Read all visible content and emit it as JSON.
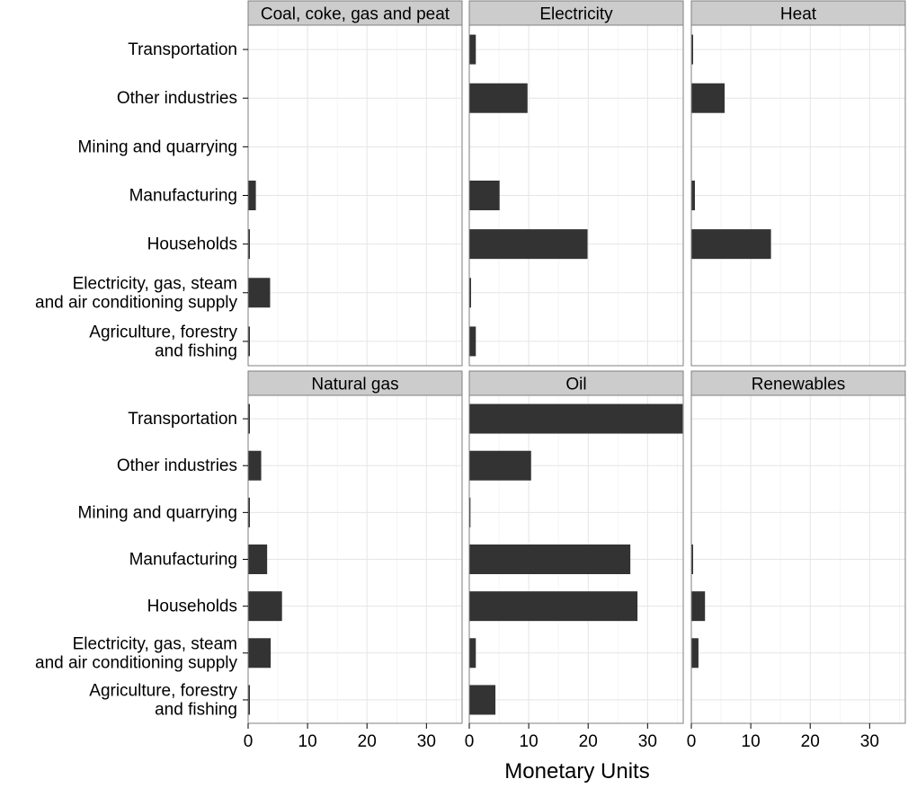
{
  "chart_data": {
    "type": "bar",
    "orientation": "horizontal",
    "facets_layout": "2 rows x 3 columns",
    "xlabel": "Monetary Units",
    "xlim": [
      0,
      36
    ],
    "x_ticks": [
      0,
      10,
      20,
      30
    ],
    "grid": true,
    "categories": [
      "Transportation",
      "Other industries",
      "Mining and quarrying",
      "Manufacturing",
      "Households",
      "Electricity, gas, steam\nand air conditioning supply",
      "Agriculture, forestry\nand fishing"
    ],
    "panels": [
      {
        "title": "Coal, coke, gas and peat",
        "values": [
          0.0,
          0.0,
          0.0,
          1.3,
          0.3,
          3.7,
          0.3
        ]
      },
      {
        "title": "Electricity",
        "values": [
          1.1,
          9.8,
          0.0,
          5.1,
          19.9,
          0.3,
          1.1
        ]
      },
      {
        "title": "Heat",
        "values": [
          0.3,
          5.6,
          0.0,
          0.6,
          13.4,
          0.0,
          0.0
        ]
      },
      {
        "title": "Natural gas",
        "values": [
          0.3,
          2.2,
          0.3,
          3.2,
          5.7,
          3.8,
          0.3
        ]
      },
      {
        "title": "Oil",
        "values": [
          35.9,
          10.4,
          0.2,
          27.1,
          28.3,
          1.1,
          4.4
        ]
      },
      {
        "title": "Renewables",
        "values": [
          0.0,
          0.0,
          0.0,
          0.3,
          2.3,
          1.2,
          0.0
        ]
      }
    ]
  },
  "colors": {
    "bar": "#333333",
    "strip_background": "#cccccc",
    "panel_border": "#7f7f7f",
    "grid_major": "#e5e5e5"
  }
}
